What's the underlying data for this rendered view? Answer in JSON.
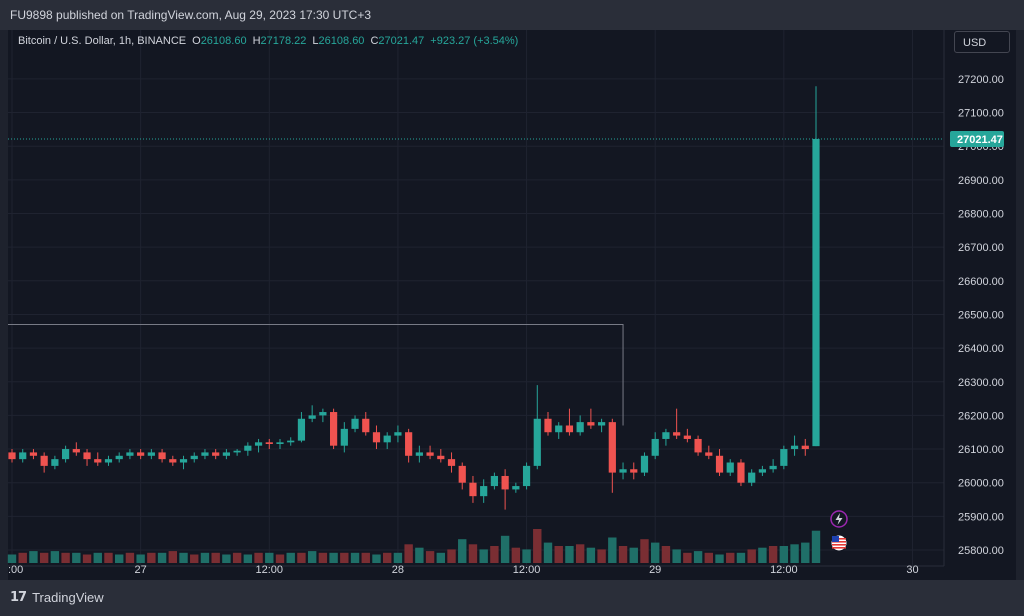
{
  "header": {
    "publisher_line": "FU9898 published on TradingView.com, Aug 29, 2023 17:30 UTC+3"
  },
  "legend": {
    "symbol": "Bitcoin / U.S. Dollar, 1h, BINANCE",
    "o_label": "O",
    "o_value": "26108.60",
    "h_label": "H",
    "h_value": "27178.22",
    "l_label": "L",
    "l_value": "26108.60",
    "c_label": "C",
    "c_value": "27021.47",
    "change": "+923.27 (+3.54%)"
  },
  "currency_button": "USD",
  "branding": {
    "name": "TradingView",
    "mark": "17"
  },
  "colors": {
    "up": "#26a69a",
    "down": "#ef5350",
    "background": "#131722",
    "text": "#d1d4dc"
  },
  "icons": [
    "lightning-icon",
    "us-flag-icon"
  ],
  "chart_data": {
    "type": "candlestick",
    "y_ticks": [
      "25800.00",
      "25900.00",
      "26000.00",
      "26100.00",
      "26200.00",
      "26300.00",
      "26400.00",
      "26500.00",
      "26600.00",
      "26700.00",
      "26800.00",
      "26900.00",
      "27000.00",
      "27100.00",
      "27200.00"
    ],
    "x_ticks": [
      {
        "label": ":00",
        "index": 0
      },
      {
        "label": "27",
        "index": 12
      },
      {
        "label": "12:00",
        "index": 24
      },
      {
        "label": "28",
        "index": 36
      },
      {
        "label": "12:00",
        "index": 48
      },
      {
        "label": "29",
        "index": 60
      },
      {
        "label": "12:00",
        "index": 72
      },
      {
        "label": "30",
        "index": 84
      }
    ],
    "ylim": [
      25770,
      27260
    ],
    "last_price": 27021.47,
    "last_price_label": "27021.47",
    "range_box": {
      "top": 26470,
      "start_index": -2,
      "end_index": 57
    },
    "candles": [
      [
        26090,
        26100,
        26060,
        26070
      ],
      [
        26070,
        26100,
        26060,
        26090
      ],
      [
        26090,
        26100,
        26070,
        26080
      ],
      [
        26080,
        26090,
        26030,
        26050
      ],
      [
        26050,
        26080,
        26040,
        26070
      ],
      [
        26070,
        26110,
        26060,
        26100
      ],
      [
        26100,
        26120,
        26080,
        26090
      ],
      [
        26090,
        26100,
        26050,
        26070
      ],
      [
        26070,
        26090,
        26050,
        26060
      ],
      [
        26060,
        26080,
        26050,
        26070
      ],
      [
        26070,
        26090,
        26060,
        26080
      ],
      [
        26080,
        26100,
        26070,
        26090
      ],
      [
        26090,
        26100,
        26070,
        26080
      ],
      [
        26080,
        26100,
        26070,
        26090
      ],
      [
        26090,
        26100,
        26060,
        26070
      ],
      [
        26070,
        26080,
        26050,
        26060
      ],
      [
        26060,
        26080,
        26040,
        26070
      ],
      [
        26070,
        26090,
        26060,
        26080
      ],
      [
        26080,
        26100,
        26070,
        26090
      ],
      [
        26090,
        26100,
        26070,
        26080
      ],
      [
        26080,
        26100,
        26070,
        26090
      ],
      [
        26090,
        26100,
        26080,
        26095
      ],
      [
        26095,
        26120,
        26080,
        26110
      ],
      [
        26110,
        26130,
        26090,
        26120
      ],
      [
        26120,
        26130,
        26100,
        26115
      ],
      [
        26115,
        26130,
        26100,
        26120
      ],
      [
        26120,
        26135,
        26110,
        26125
      ],
      [
        26125,
        26210,
        26120,
        26190
      ],
      [
        26190,
        26230,
        26180,
        26200
      ],
      [
        26200,
        26220,
        26180,
        26210
      ],
      [
        26210,
        26220,
        26100,
        26110
      ],
      [
        26110,
        26180,
        26090,
        26160
      ],
      [
        26160,
        26200,
        26150,
        26190
      ],
      [
        26190,
        26210,
        26140,
        26150
      ],
      [
        26150,
        26170,
        26100,
        26120
      ],
      [
        26120,
        26150,
        26100,
        26140
      ],
      [
        26140,
        26170,
        26120,
        26150
      ],
      [
        26150,
        26160,
        26060,
        26080
      ],
      [
        26080,
        26110,
        26060,
        26090
      ],
      [
        26090,
        26110,
        26070,
        26080
      ],
      [
        26080,
        26100,
        26060,
        26070
      ],
      [
        26070,
        26090,
        26030,
        26050
      ],
      [
        26050,
        26060,
        25980,
        26000
      ],
      [
        26000,
        26020,
        25940,
        25960
      ],
      [
        25960,
        26010,
        25940,
        25990
      ],
      [
        25990,
        26030,
        25980,
        26020
      ],
      [
        26020,
        26040,
        25920,
        25980
      ],
      [
        25980,
        26000,
        25970,
        25990
      ],
      [
        25990,
        26060,
        25980,
        26050
      ],
      [
        26050,
        26290,
        26040,
        26190
      ],
      [
        26190,
        26210,
        26140,
        26150
      ],
      [
        26150,
        26180,
        26130,
        26170
      ],
      [
        26170,
        26220,
        26140,
        26150
      ],
      [
        26150,
        26200,
        26140,
        26180
      ],
      [
        26180,
        26220,
        26160,
        26170
      ],
      [
        26170,
        26190,
        26150,
        26180
      ],
      [
        26180,
        26190,
        25970,
        26030
      ],
      [
        26030,
        26060,
        26010,
        26040
      ],
      [
        26040,
        26060,
        26010,
        26030
      ],
      [
        26030,
        26090,
        26020,
        26080
      ],
      [
        26080,
        26150,
        26070,
        26130
      ],
      [
        26130,
        26160,
        26110,
        26150
      ],
      [
        26150,
        26220,
        26130,
        26140
      ],
      [
        26140,
        26160,
        26120,
        26130
      ],
      [
        26130,
        26140,
        26080,
        26090
      ],
      [
        26090,
        26110,
        26070,
        26080
      ],
      [
        26080,
        26100,
        26020,
        26030
      ],
      [
        26030,
        26070,
        26020,
        26060
      ],
      [
        26060,
        26070,
        25990,
        26000
      ],
      [
        26000,
        26040,
        25990,
        26030
      ],
      [
        26030,
        26050,
        26020,
        26040
      ],
      [
        26040,
        26070,
        26030,
        26050
      ],
      [
        26050,
        26110,
        26040,
        26100
      ],
      [
        26100,
        26140,
        26080,
        26110
      ],
      [
        26110,
        26130,
        26080,
        26100
      ],
      [
        26108.6,
        27178.22,
        26108.6,
        27021.47
      ]
    ],
    "volume": [
      [
        0.25,
        "up"
      ],
      [
        0.3,
        "down"
      ],
      [
        0.35,
        "up"
      ],
      [
        0.3,
        "down"
      ],
      [
        0.35,
        "up"
      ],
      [
        0.3,
        "down"
      ],
      [
        0.3,
        "up"
      ],
      [
        0.25,
        "down"
      ],
      [
        0.3,
        "up"
      ],
      [
        0.3,
        "down"
      ],
      [
        0.25,
        "up"
      ],
      [
        0.3,
        "down"
      ],
      [
        0.25,
        "up"
      ],
      [
        0.3,
        "down"
      ],
      [
        0.3,
        "up"
      ],
      [
        0.35,
        "down"
      ],
      [
        0.3,
        "up"
      ],
      [
        0.25,
        "down"
      ],
      [
        0.3,
        "up"
      ],
      [
        0.3,
        "down"
      ],
      [
        0.25,
        "up"
      ],
      [
        0.3,
        "down"
      ],
      [
        0.25,
        "up"
      ],
      [
        0.3,
        "down"
      ],
      [
        0.3,
        "up"
      ],
      [
        0.25,
        "down"
      ],
      [
        0.3,
        "up"
      ],
      [
        0.3,
        "down"
      ],
      [
        0.35,
        "up"
      ],
      [
        0.3,
        "down"
      ],
      [
        0.3,
        "up"
      ],
      [
        0.3,
        "down"
      ],
      [
        0.3,
        "up"
      ],
      [
        0.3,
        "down"
      ],
      [
        0.25,
        "up"
      ],
      [
        0.3,
        "down"
      ],
      [
        0.3,
        "up"
      ],
      [
        0.55,
        "down"
      ],
      [
        0.45,
        "up"
      ],
      [
        0.35,
        "down"
      ],
      [
        0.3,
        "up"
      ],
      [
        0.4,
        "down"
      ],
      [
        0.7,
        "up"
      ],
      [
        0.55,
        "down"
      ],
      [
        0.4,
        "up"
      ],
      [
        0.5,
        "down"
      ],
      [
        0.8,
        "up"
      ],
      [
        0.45,
        "down"
      ],
      [
        0.4,
        "up"
      ],
      [
        1.0,
        "down"
      ],
      [
        0.6,
        "up"
      ],
      [
        0.5,
        "down"
      ],
      [
        0.5,
        "up"
      ],
      [
        0.55,
        "down"
      ],
      [
        0.45,
        "up"
      ],
      [
        0.4,
        "down"
      ],
      [
        0.75,
        "up"
      ],
      [
        0.5,
        "down"
      ],
      [
        0.45,
        "up"
      ],
      [
        0.7,
        "down"
      ],
      [
        0.6,
        "up"
      ],
      [
        0.5,
        "down"
      ],
      [
        0.4,
        "up"
      ],
      [
        0.3,
        "down"
      ],
      [
        0.35,
        "up"
      ],
      [
        0.3,
        "down"
      ],
      [
        0.25,
        "up"
      ],
      [
        0.3,
        "down"
      ],
      [
        0.3,
        "up"
      ],
      [
        0.4,
        "down"
      ],
      [
        0.45,
        "up"
      ],
      [
        0.5,
        "down"
      ],
      [
        0.5,
        "up"
      ],
      [
        0.55,
        "up"
      ],
      [
        0.6,
        "up"
      ],
      [
        0.95,
        "up"
      ]
    ]
  }
}
